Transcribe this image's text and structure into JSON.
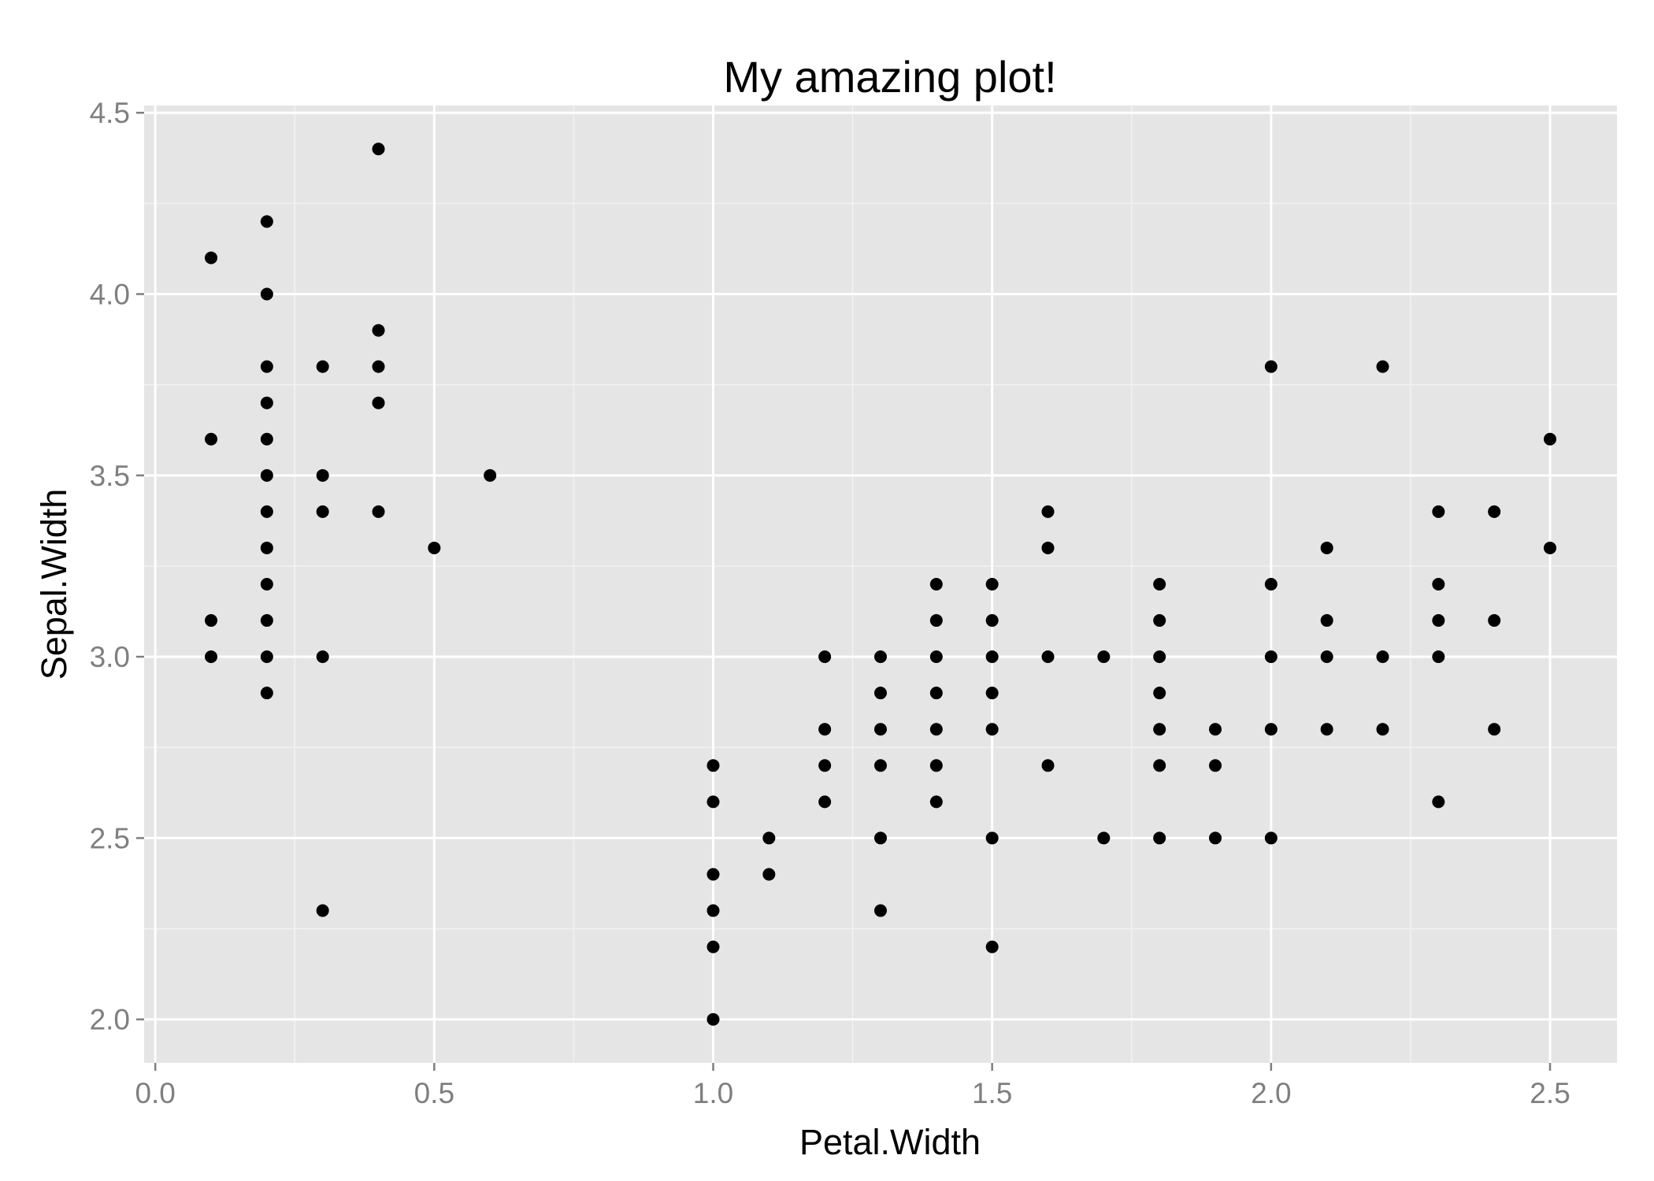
{
  "chart_data": {
    "type": "scatter",
    "title": "My amazing plot!",
    "xlabel": "Petal.Width",
    "ylabel": "Sepal.Width",
    "xlim": [
      -0.02,
      2.62
    ],
    "ylim": [
      1.88,
      4.52
    ],
    "x_ticks": [
      0.0,
      0.5,
      1.0,
      1.5,
      2.0,
      2.5
    ],
    "x_tick_labels": [
      "0.0",
      "0.5",
      "1.0",
      "1.5",
      "2.0",
      "2.5"
    ],
    "y_ticks": [
      2.0,
      2.5,
      3.0,
      3.5,
      4.0,
      4.5
    ],
    "y_tick_labels": [
      "2.0",
      "2.5",
      "3.0",
      "3.5",
      "4.0",
      "4.5"
    ],
    "x_minor": [
      0.25,
      0.75,
      1.25,
      1.75,
      2.25
    ],
    "y_minor": [
      2.25,
      2.75,
      3.25,
      3.75,
      4.25
    ],
    "grid": true,
    "legend": "none",
    "colors": {
      "panel": "#e5e5e5",
      "grid_major": "#ffffff",
      "grid_minor": "#f2f2f2",
      "point": "#000000",
      "tick_text": "#7f7f7f"
    },
    "points": [
      [
        0.1,
        4.1
      ],
      [
        0.1,
        3.6
      ],
      [
        0.1,
        3.1
      ],
      [
        0.1,
        3.0
      ],
      [
        0.2,
        4.2
      ],
      [
        0.2,
        4.0
      ],
      [
        0.2,
        3.8
      ],
      [
        0.2,
        3.7
      ],
      [
        0.2,
        3.6
      ],
      [
        0.2,
        3.5
      ],
      [
        0.2,
        3.4
      ],
      [
        0.2,
        3.3
      ],
      [
        0.2,
        3.2
      ],
      [
        0.2,
        3.1
      ],
      [
        0.2,
        3.0
      ],
      [
        0.2,
        2.9
      ],
      [
        0.3,
        3.8
      ],
      [
        0.3,
        3.5
      ],
      [
        0.3,
        3.4
      ],
      [
        0.3,
        3.0
      ],
      [
        0.3,
        2.3
      ],
      [
        0.4,
        4.4
      ],
      [
        0.4,
        3.9
      ],
      [
        0.4,
        3.8
      ],
      [
        0.4,
        3.7
      ],
      [
        0.4,
        3.4
      ],
      [
        0.5,
        3.3
      ],
      [
        0.6,
        3.5
      ],
      [
        1.0,
        2.7
      ],
      [
        1.0,
        2.6
      ],
      [
        1.0,
        2.4
      ],
      [
        1.0,
        2.3
      ],
      [
        1.0,
        2.2
      ],
      [
        1.0,
        2.0
      ],
      [
        1.1,
        2.5
      ],
      [
        1.1,
        2.4
      ],
      [
        1.2,
        3.0
      ],
      [
        1.2,
        2.8
      ],
      [
        1.2,
        2.7
      ],
      [
        1.2,
        2.6
      ],
      [
        1.3,
        3.0
      ],
      [
        1.3,
        2.9
      ],
      [
        1.3,
        2.8
      ],
      [
        1.3,
        2.7
      ],
      [
        1.3,
        2.5
      ],
      [
        1.3,
        2.3
      ],
      [
        1.4,
        3.2
      ],
      [
        1.4,
        3.1
      ],
      [
        1.4,
        3.0
      ],
      [
        1.4,
        2.9
      ],
      [
        1.4,
        2.8
      ],
      [
        1.4,
        2.7
      ],
      [
        1.4,
        2.6
      ],
      [
        1.5,
        3.2
      ],
      [
        1.5,
        3.1
      ],
      [
        1.5,
        3.0
      ],
      [
        1.5,
        2.9
      ],
      [
        1.5,
        2.8
      ],
      [
        1.5,
        2.5
      ],
      [
        1.5,
        2.2
      ],
      [
        1.6,
        3.4
      ],
      [
        1.6,
        3.3
      ],
      [
        1.6,
        3.0
      ],
      [
        1.6,
        2.7
      ],
      [
        1.7,
        3.0
      ],
      [
        1.7,
        2.5
      ],
      [
        1.8,
        3.2
      ],
      [
        1.8,
        3.1
      ],
      [
        1.8,
        3.0
      ],
      [
        1.8,
        2.9
      ],
      [
        1.8,
        2.8
      ],
      [
        1.8,
        2.7
      ],
      [
        1.8,
        2.5
      ],
      [
        1.9,
        2.8
      ],
      [
        1.9,
        2.7
      ],
      [
        1.9,
        2.5
      ],
      [
        2.0,
        3.8
      ],
      [
        2.0,
        3.2
      ],
      [
        2.0,
        3.0
      ],
      [
        2.0,
        2.8
      ],
      [
        2.0,
        2.5
      ],
      [
        2.1,
        3.3
      ],
      [
        2.1,
        3.1
      ],
      [
        2.1,
        3.0
      ],
      [
        2.1,
        2.8
      ],
      [
        2.2,
        3.8
      ],
      [
        2.2,
        3.0
      ],
      [
        2.2,
        2.8
      ],
      [
        2.3,
        3.4
      ],
      [
        2.3,
        3.2
      ],
      [
        2.3,
        3.1
      ],
      [
        2.3,
        3.0
      ],
      [
        2.3,
        2.6
      ],
      [
        2.4,
        3.4
      ],
      [
        2.4,
        3.1
      ],
      [
        2.4,
        2.8
      ],
      [
        2.5,
        3.6
      ],
      [
        2.5,
        3.3
      ]
    ]
  }
}
